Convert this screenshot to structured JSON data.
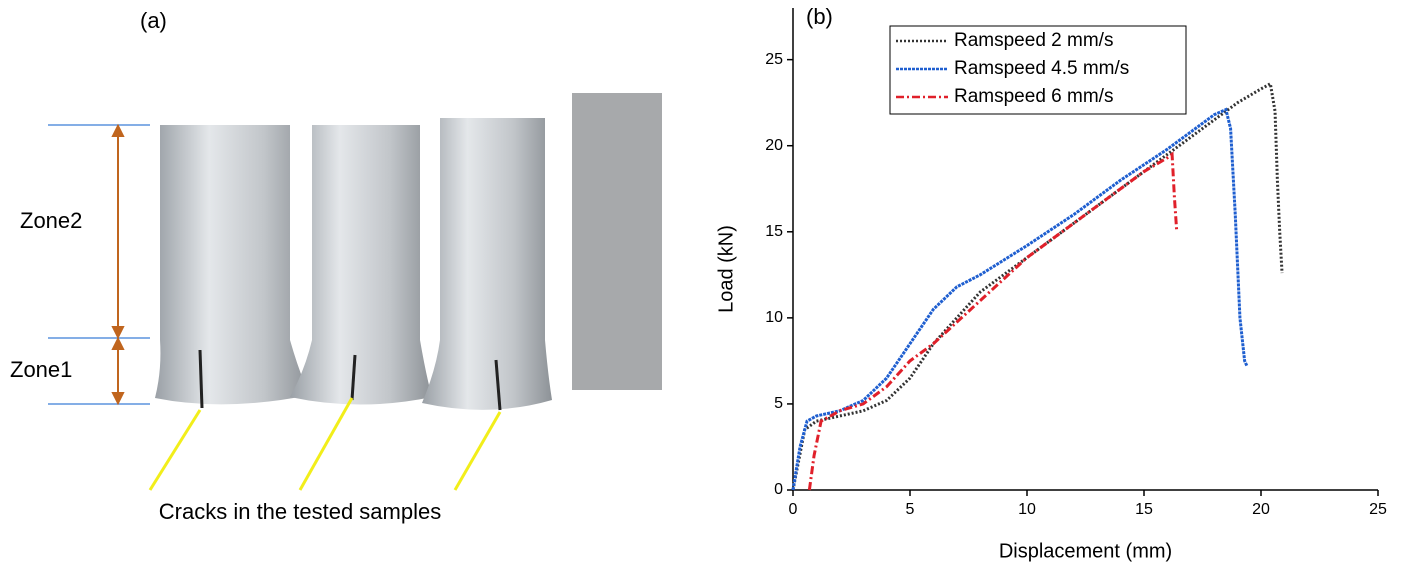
{
  "panel_a": {
    "label": "(a)",
    "zones": [
      "Zone2",
      "Zone1"
    ],
    "caption": "Cracks in the tested samples"
  },
  "chart_data": {
    "type": "line",
    "label": "(b)",
    "x_label": "Displacement (mm)",
    "y_label": "Load (kN)",
    "xlim": [
      0,
      28
    ],
    "ylim": [
      0,
      28
    ],
    "xticks": [
      0,
      5,
      10,
      15,
      20,
      25
    ],
    "yticks": [
      0,
      5,
      10,
      15,
      20,
      25
    ],
    "legend": "upper left",
    "series": [
      {
        "name": "Ramspeed 2 mm/s",
        "color": "#333333",
        "dash": "2 2",
        "x": [
          0,
          0.5,
          1,
          2,
          3,
          4,
          5,
          6,
          7,
          8,
          10,
          12,
          14,
          16,
          18,
          19,
          20,
          20.4,
          20.6,
          20.7,
          20.8,
          20.9
        ],
        "values": [
          0,
          3.5,
          4,
          4.3,
          4.6,
          5.2,
          6.5,
          8.5,
          10,
          11.5,
          13.5,
          15.5,
          17.5,
          19.5,
          21.5,
          22.5,
          23.3,
          23.6,
          22,
          18,
          15,
          12.6
        ]
      },
      {
        "name": "Ramspeed 4.5 mm/s",
        "color": "#1f5fd0",
        "dash": "3 1",
        "x": [
          0,
          0.3,
          0.6,
          1,
          2,
          3,
          4,
          5,
          6,
          7,
          8,
          10,
          12,
          14,
          16,
          18,
          18.5,
          18.7,
          18.9,
          19.1,
          19.3,
          19.4
        ],
        "values": [
          0,
          2.5,
          4,
          4.3,
          4.6,
          5.2,
          6.5,
          8.5,
          10.5,
          11.8,
          12.5,
          14.2,
          16,
          18,
          19.8,
          21.8,
          22.1,
          21,
          16,
          10,
          7.5,
          7.2
        ]
      },
      {
        "name": "Ramspeed 6 mm/s",
        "color": "#e0202a",
        "dash": "8 3 2 3",
        "x": [
          0.7,
          0.9,
          1.2,
          2,
          3,
          4,
          5,
          6,
          8,
          10,
          12,
          14,
          15,
          16,
          16.2,
          16.3,
          16.4
        ],
        "values": [
          0,
          2,
          4,
          4.6,
          5,
          6,
          7.5,
          8.5,
          11,
          13.5,
          15.5,
          17.5,
          18.5,
          19.3,
          19.5,
          17,
          15
        ]
      }
    ]
  }
}
